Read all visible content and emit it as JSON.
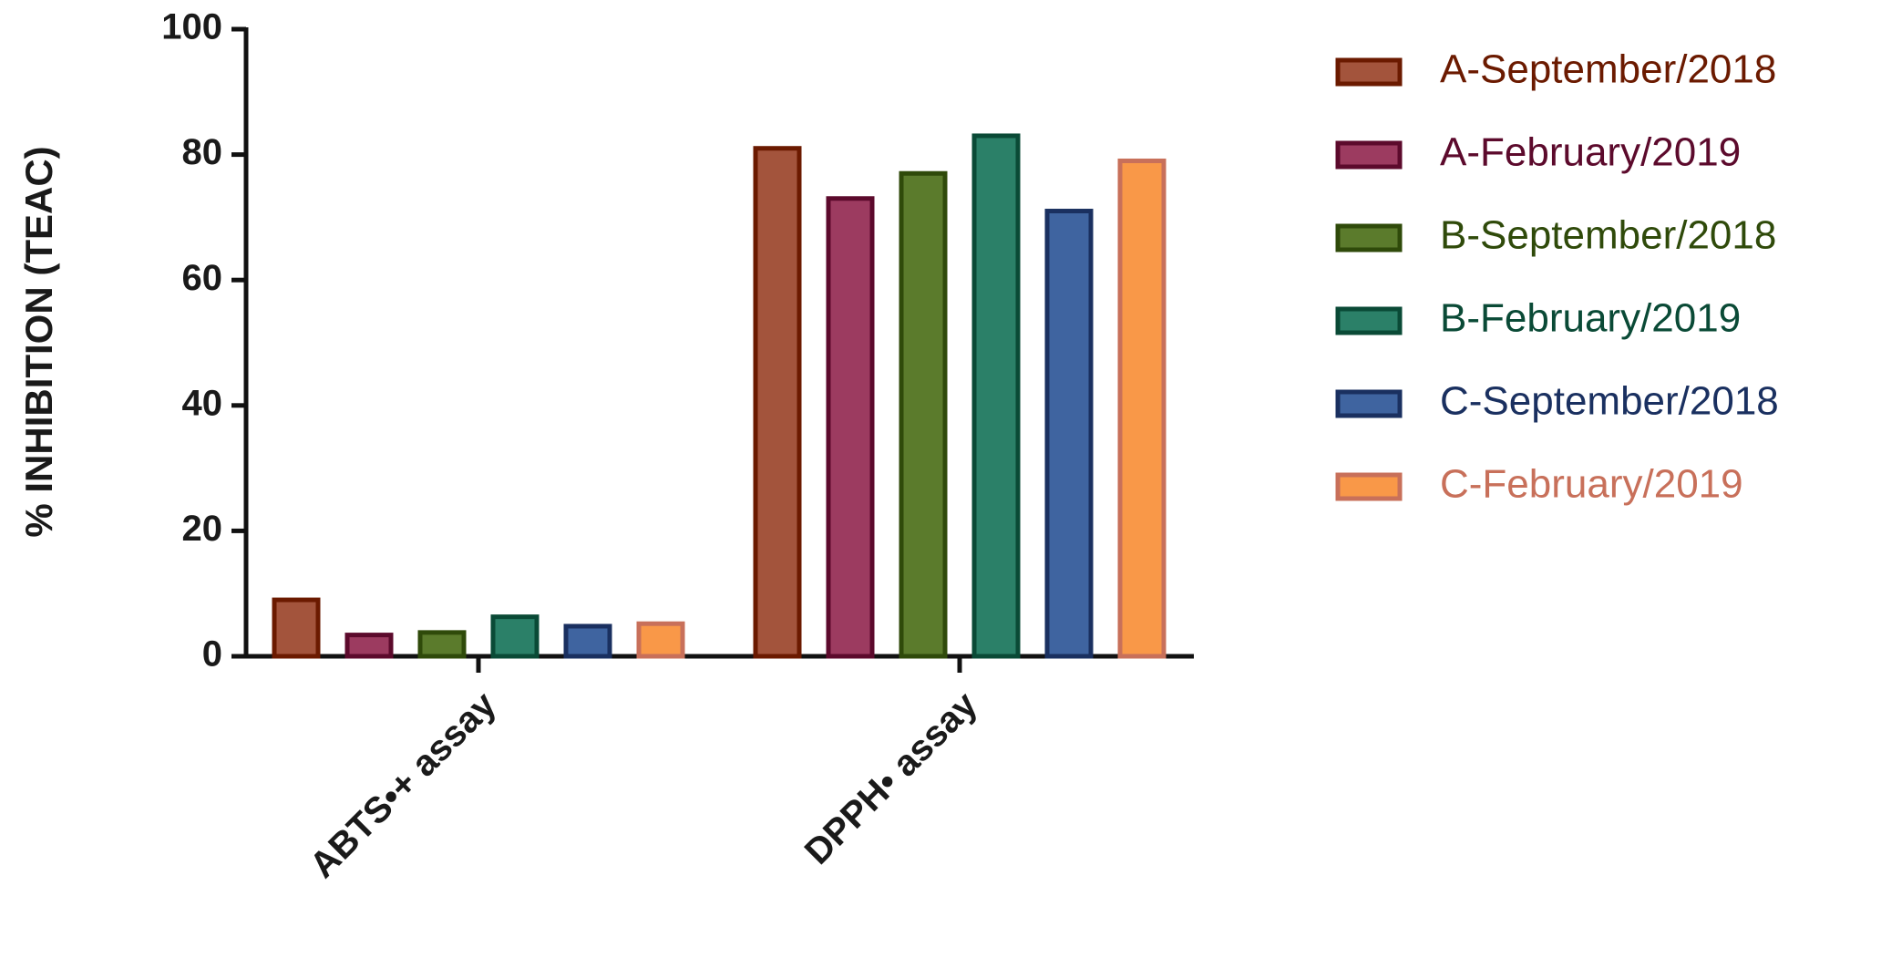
{
  "chart_data": {
    "type": "bar",
    "y_label": "% INHIBITION (TEAC)",
    "categories": [
      "ABTS•+ assay",
      "DPPH• assay"
    ],
    "series": [
      {
        "name": "A-September/2018",
        "color": "#a3543c",
        "edge_color": "#6b1a00",
        "values": [
          9,
          81
        ]
      },
      {
        "name": "A-February/2019",
        "color": "#9c3b60",
        "edge_color": "#5c0a2c",
        "values": [
          3.4,
          73
        ]
      },
      {
        "name": "B-September/2018",
        "color": "#5b7b2c",
        "edge_color": "#2f4a0a",
        "values": [
          3.8,
          77
        ]
      },
      {
        "name": "B-February/2019",
        "color": "#2b8068",
        "edge_color": "#0a4a36",
        "values": [
          6.3,
          83
        ]
      },
      {
        "name": "C-September/2018",
        "color": "#3f64a0",
        "edge_color": "#1a3060",
        "values": [
          4.8,
          71
        ]
      },
      {
        "name": "C-February/2019",
        "color": "#f99848",
        "edge_color": "#c8705a",
        "values": [
          5.2,
          79
        ]
      }
    ],
    "ylim": [
      0,
      100
    ],
    "yticks": [
      0,
      20,
      40,
      60,
      80,
      100
    ]
  }
}
